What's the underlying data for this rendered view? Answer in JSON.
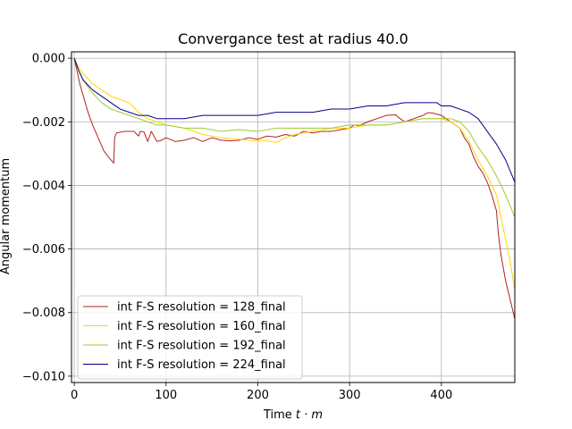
{
  "chart_data": {
    "type": "line",
    "title": "Convergance test at radius 40.0",
    "xlabel_main": "Time ",
    "xlabel_math": "t · m",
    "ylabel": "Angular momentum",
    "xlim": [
      -3,
      480
    ],
    "ylim": [
      -0.0102,
      0.0002
    ],
    "xticks": [
      0,
      100,
      200,
      300,
      400
    ],
    "yticks": [
      0.0,
      -0.002,
      -0.004,
      -0.006,
      -0.008,
      -0.01
    ],
    "xtick_labels": [
      "0",
      "100",
      "200",
      "300",
      "400"
    ],
    "ytick_labels": [
      "0.000",
      "−0.002",
      "−0.004",
      "−0.006",
      "−0.008",
      "−0.010"
    ],
    "grid": true,
    "legend_position": "lower-left",
    "series": [
      {
        "name": "int F-S resolution = 128_final",
        "color": "#b22222",
        "points": [
          [
            0,
            0.0
          ],
          [
            3,
            -0.0004
          ],
          [
            6,
            -0.0008
          ],
          [
            10,
            -0.0012
          ],
          [
            15,
            -0.0017
          ],
          [
            20,
            -0.0021
          ],
          [
            26,
            -0.0025
          ],
          [
            32,
            -0.0029
          ],
          [
            37,
            -0.0031
          ],
          [
            40,
            -0.0032
          ],
          [
            43,
            -0.0033
          ],
          [
            44,
            -0.0025
          ],
          [
            46,
            -0.00235
          ],
          [
            55,
            -0.0023
          ],
          [
            65,
            -0.0023
          ],
          [
            70,
            -0.00245
          ],
          [
            72,
            -0.0023
          ],
          [
            76,
            -0.00232
          ],
          [
            80,
            -0.00262
          ],
          [
            84,
            -0.0023
          ],
          [
            90,
            -0.00262
          ],
          [
            95,
            -0.00258
          ],
          [
            100,
            -0.0025
          ],
          [
            110,
            -0.00262
          ],
          [
            120,
            -0.00258
          ],
          [
            130,
            -0.0025
          ],
          [
            140,
            -0.00262
          ],
          [
            150,
            -0.0025
          ],
          [
            160,
            -0.00258
          ],
          [
            170,
            -0.0026
          ],
          [
            180,
            -0.00258
          ],
          [
            190,
            -0.0025
          ],
          [
            200,
            -0.00255
          ],
          [
            210,
            -0.00245
          ],
          [
            220,
            -0.00248
          ],
          [
            230,
            -0.0024
          ],
          [
            240,
            -0.00245
          ],
          [
            250,
            -0.0023
          ],
          [
            260,
            -0.00235
          ],
          [
            270,
            -0.0023
          ],
          [
            280,
            -0.0023
          ],
          [
            290,
            -0.00225
          ],
          [
            300,
            -0.0022
          ],
          [
            305,
            -0.0021
          ],
          [
            310,
            -0.00212
          ],
          [
            320,
            -0.002
          ],
          [
            330,
            -0.0019
          ],
          [
            340,
            -0.0018
          ],
          [
            350,
            -0.00178
          ],
          [
            355,
            -0.0019
          ],
          [
            360,
            -0.002
          ],
          [
            370,
            -0.0019
          ],
          [
            380,
            -0.0018
          ],
          [
            385,
            -0.00172
          ],
          [
            390,
            -0.00172
          ],
          [
            400,
            -0.0018
          ],
          [
            405,
            -0.0019
          ],
          [
            410,
            -0.002
          ],
          [
            420,
            -0.0022
          ],
          [
            425,
            -0.0025
          ],
          [
            430,
            -0.0027
          ],
          [
            435,
            -0.0031
          ],
          [
            440,
            -0.0034
          ],
          [
            445,
            -0.0036
          ],
          [
            450,
            -0.0039
          ],
          [
            455,
            -0.0043
          ],
          [
            460,
            -0.0048
          ],
          [
            462,
            -0.0055
          ],
          [
            465,
            -0.0062
          ],
          [
            470,
            -0.007
          ],
          [
            475,
            -0.0076
          ],
          [
            480,
            -0.0082
          ]
        ]
      },
      {
        "name": "int F-S resolution = 160_final",
        "color": "#ffd700",
        "points": [
          [
            0,
            0.0
          ],
          [
            5,
            -0.0003
          ],
          [
            10,
            -0.0005
          ],
          [
            20,
            -0.0008
          ],
          [
            30,
            -0.001
          ],
          [
            40,
            -0.0012
          ],
          [
            50,
            -0.0013
          ],
          [
            60,
            -0.0014
          ],
          [
            70,
            -0.0017
          ],
          [
            80,
            -0.0019
          ],
          [
            90,
            -0.002
          ],
          [
            100,
            -0.0021
          ],
          [
            120,
            -0.0022
          ],
          [
            140,
            -0.0024
          ],
          [
            160,
            -0.0025
          ],
          [
            180,
            -0.00255
          ],
          [
            200,
            -0.0026
          ],
          [
            210,
            -0.0026
          ],
          [
            220,
            -0.00265
          ],
          [
            230,
            -0.0025
          ],
          [
            240,
            -0.0024
          ],
          [
            260,
            -0.0023
          ],
          [
            280,
            -0.0022
          ],
          [
            300,
            -0.0022
          ],
          [
            320,
            -0.0021
          ],
          [
            340,
            -0.0021
          ],
          [
            360,
            -0.002
          ],
          [
            380,
            -0.0019
          ],
          [
            400,
            -0.0019
          ],
          [
            410,
            -0.002
          ],
          [
            420,
            -0.0022
          ],
          [
            430,
            -0.0026
          ],
          [
            440,
            -0.0032
          ],
          [
            450,
            -0.0037
          ],
          [
            460,
            -0.0043
          ],
          [
            465,
            -0.005
          ],
          [
            470,
            -0.0057
          ],
          [
            475,
            -0.0064
          ],
          [
            480,
            -0.0073
          ]
        ]
      },
      {
        "name": "int F-S resolution = 192_final",
        "color": "#9acd32",
        "points": [
          [
            0,
            0.0
          ],
          [
            5,
            -0.0004
          ],
          [
            10,
            -0.0007
          ],
          [
            20,
            -0.0011
          ],
          [
            30,
            -0.0014
          ],
          [
            40,
            -0.0016
          ],
          [
            50,
            -0.0017
          ],
          [
            60,
            -0.0018
          ],
          [
            70,
            -0.0019
          ],
          [
            80,
            -0.002
          ],
          [
            90,
            -0.0021
          ],
          [
            100,
            -0.0021
          ],
          [
            120,
            -0.0022
          ],
          [
            140,
            -0.0022
          ],
          [
            160,
            -0.0023
          ],
          [
            180,
            -0.00225
          ],
          [
            200,
            -0.0023
          ],
          [
            220,
            -0.0022
          ],
          [
            240,
            -0.0022
          ],
          [
            260,
            -0.0022
          ],
          [
            280,
            -0.0022
          ],
          [
            300,
            -0.0021
          ],
          [
            320,
            -0.0021
          ],
          [
            340,
            -0.0021
          ],
          [
            360,
            -0.002
          ],
          [
            380,
            -0.0019
          ],
          [
            400,
            -0.0019
          ],
          [
            410,
            -0.0019
          ],
          [
            420,
            -0.002
          ],
          [
            430,
            -0.0023
          ],
          [
            440,
            -0.0028
          ],
          [
            450,
            -0.0032
          ],
          [
            460,
            -0.0037
          ],
          [
            470,
            -0.0043
          ],
          [
            480,
            -0.005
          ]
        ]
      },
      {
        "name": "int F-S resolution = 224_final",
        "color": "#00008b",
        "points": [
          [
            0,
            0.0
          ],
          [
            5,
            -0.0004
          ],
          [
            10,
            -0.0007
          ],
          [
            20,
            -0.001
          ],
          [
            30,
            -0.0012
          ],
          [
            40,
            -0.0014
          ],
          [
            50,
            -0.0016
          ],
          [
            60,
            -0.0017
          ],
          [
            70,
            -0.0018
          ],
          [
            80,
            -0.0018
          ],
          [
            90,
            -0.0019
          ],
          [
            100,
            -0.0019
          ],
          [
            120,
            -0.0019
          ],
          [
            140,
            -0.0018
          ],
          [
            160,
            -0.0018
          ],
          [
            180,
            -0.0018
          ],
          [
            200,
            -0.0018
          ],
          [
            220,
            -0.0017
          ],
          [
            240,
            -0.0017
          ],
          [
            260,
            -0.0017
          ],
          [
            280,
            -0.0016
          ],
          [
            300,
            -0.0016
          ],
          [
            320,
            -0.0015
          ],
          [
            340,
            -0.0015
          ],
          [
            360,
            -0.0014
          ],
          [
            380,
            -0.0014
          ],
          [
            395,
            -0.0014
          ],
          [
            400,
            -0.0015
          ],
          [
            410,
            -0.0015
          ],
          [
            420,
            -0.0016
          ],
          [
            430,
            -0.0017
          ],
          [
            440,
            -0.0019
          ],
          [
            450,
            -0.0023
          ],
          [
            460,
            -0.0027
          ],
          [
            470,
            -0.0032
          ],
          [
            480,
            -0.0039
          ]
        ]
      }
    ]
  }
}
